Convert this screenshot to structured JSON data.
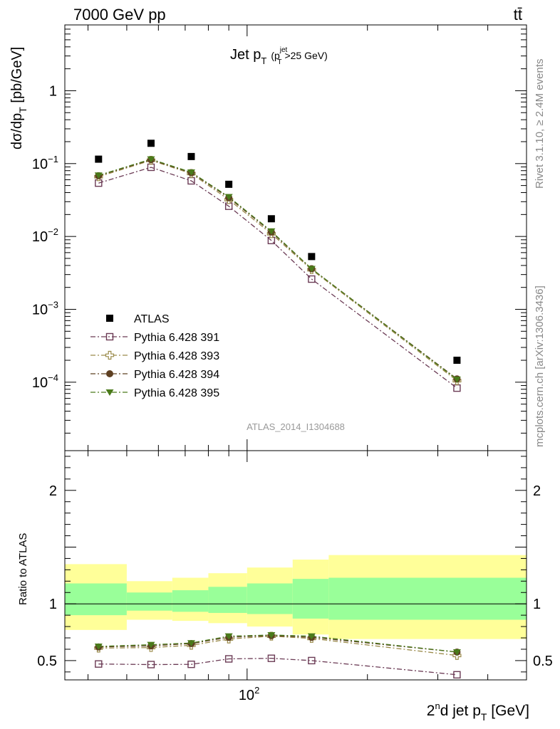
{
  "header": {
    "left": "7000 GeV pp",
    "right": "tt̄"
  },
  "side_labels": {
    "rivet": "Rivet 3.1.10, ≥ 2.4M events",
    "mcplots": "mcplots.cern.ch [arXiv:1306.3436]"
  },
  "colors": {
    "atlas": "#000000",
    "p391": "#6b3b55",
    "p393": "#9a8a4a",
    "p394": "#5e4022",
    "p395": "#4a7a1a",
    "band_outer": "#ffff99",
    "band_inner": "#99ff99"
  },
  "chart_data": [
    {
      "type": "scatter",
      "panel": "main",
      "title": "Jet p_T (p_T^jet>25 GeV)",
      "title_parts": {
        "main": "Jet p",
        "sub": "T",
        "paren_open": "(p",
        "sup": "jet",
        "sub2": "T",
        "rest": ">25 GeV)"
      },
      "ylabel": "dσ/dp_T [pb/GeV]",
      "ylabel_parts": {
        "main": "dσ/dp",
        "sub": "T",
        "rest": " [pb/GeV]"
      },
      "watermark": "ATLAS_2014_I1304688",
      "x_scale": "log",
      "y_scale": "log",
      "xlim": [
        35,
        500
      ],
      "ylim": [
        1.15e-05,
        8
      ],
      "y_ticks": [
        {
          "value": 1,
          "label": "1"
        },
        {
          "value": 0.1,
          "label": "10",
          "exp": "−1"
        },
        {
          "value": 0.01,
          "label": "10",
          "exp": "−2"
        },
        {
          "value": 0.001,
          "label": "10",
          "exp": "−3"
        },
        {
          "value": 0.0001,
          "label": "10",
          "exp": "−4"
        }
      ],
      "x": [
        42.5,
        57.5,
        72.5,
        90,
        115,
        145,
        335
      ],
      "series": [
        {
          "name": "ATLAS",
          "marker": "square-filled",
          "values": [
            0.115,
            0.19,
            0.125,
            0.052,
            0.0175,
            0.0053,
            0.0002
          ]
        },
        {
          "name": "Pythia 6.428 391",
          "marker": "square-open",
          "line": "dashdot",
          "values": [
            0.054,
            0.089,
            0.058,
            0.026,
            0.0088,
            0.0026,
            8.3e-05
          ]
        },
        {
          "name": "Pythia 6.428 393",
          "marker": "cross-open",
          "line": "dashdot",
          "values": [
            0.066,
            0.111,
            0.073,
            0.032,
            0.0109,
            0.0035,
            0.000105
          ]
        },
        {
          "name": "Pythia 6.428 394",
          "marker": "circle-filled",
          "line": "dashdot",
          "values": [
            0.068,
            0.113,
            0.075,
            0.034,
            0.0115,
            0.0036,
            0.000111
          ]
        },
        {
          "name": "Pythia 6.428 395",
          "marker": "triangle-down-filled",
          "line": "dashdot",
          "values": [
            0.069,
            0.115,
            0.076,
            0.035,
            0.0118,
            0.0036,
            0.000109
          ]
        }
      ],
      "legend": "lower-left"
    },
    {
      "type": "scatter",
      "panel": "ratio",
      "ylabel": "Ratio to ATLAS",
      "xlabel": "2nd jet p_T [GeV]",
      "xlabel_parts": {
        "main": "2",
        "sup": "n",
        "mid": "d jet p",
        "sub": "T",
        "rest": " [GeV]"
      },
      "x_scale": "log",
      "xlim": [
        35,
        500
      ],
      "ylim": [
        0.33,
        2.35
      ],
      "y_ticks": [
        {
          "value": 2,
          "label": "2"
        },
        {
          "value": 1,
          "label": "1"
        },
        {
          "value": 0.5,
          "label": "0.5"
        }
      ],
      "x_tick_labels": [
        {
          "value": 100,
          "label": "10",
          "exp": "2"
        }
      ],
      "bands": [
        {
          "x": [
            35,
            50
          ],
          "outer": [
            0.77,
            1.35
          ],
          "inner": [
            0.9,
            1.18
          ]
        },
        {
          "x": [
            50,
            65
          ],
          "outer": [
            0.86,
            1.2
          ],
          "inner": [
            0.94,
            1.1
          ]
        },
        {
          "x": [
            65,
            80
          ],
          "outer": [
            0.85,
            1.23
          ],
          "inner": [
            0.93,
            1.12
          ]
        },
        {
          "x": [
            80,
            100
          ],
          "outer": [
            0.83,
            1.27
          ],
          "inner": [
            0.92,
            1.15
          ]
        },
        {
          "x": [
            100,
            130
          ],
          "outer": [
            0.8,
            1.32
          ],
          "inner": [
            0.91,
            1.18
          ]
        },
        {
          "x": [
            130,
            160
          ],
          "outer": [
            0.73,
            1.39
          ],
          "inner": [
            0.87,
            1.22
          ]
        },
        {
          "x": [
            160,
            500
          ],
          "outer": [
            0.69,
            1.43
          ],
          "inner": [
            0.86,
            1.23
          ]
        }
      ],
      "x": [
        42.5,
        57.5,
        72.5,
        90,
        115,
        145,
        335
      ],
      "series": [
        {
          "name": "Pythia 6.428 391",
          "marker": "square-open",
          "line": "dashdot",
          "values": [
            0.47,
            0.465,
            0.467,
            0.515,
            0.52,
            0.5,
            0.375
          ]
        },
        {
          "name": "Pythia 6.428 393",
          "marker": "cross-open",
          "line": "dashdot",
          "values": [
            0.61,
            0.615,
            0.635,
            0.69,
            0.715,
            0.695,
            0.545
          ]
        },
        {
          "name": "Pythia 6.428 394",
          "marker": "circle-filled",
          "line": "dashdot",
          "values": [
            0.62,
            0.63,
            0.65,
            0.705,
            0.72,
            0.705,
            0.575
          ]
        },
        {
          "name": "Pythia 6.428 395",
          "marker": "triangle-down-filled",
          "line": "dashdot",
          "values": [
            0.625,
            0.64,
            0.655,
            0.715,
            0.725,
            0.715,
            0.575
          ]
        }
      ]
    }
  ]
}
